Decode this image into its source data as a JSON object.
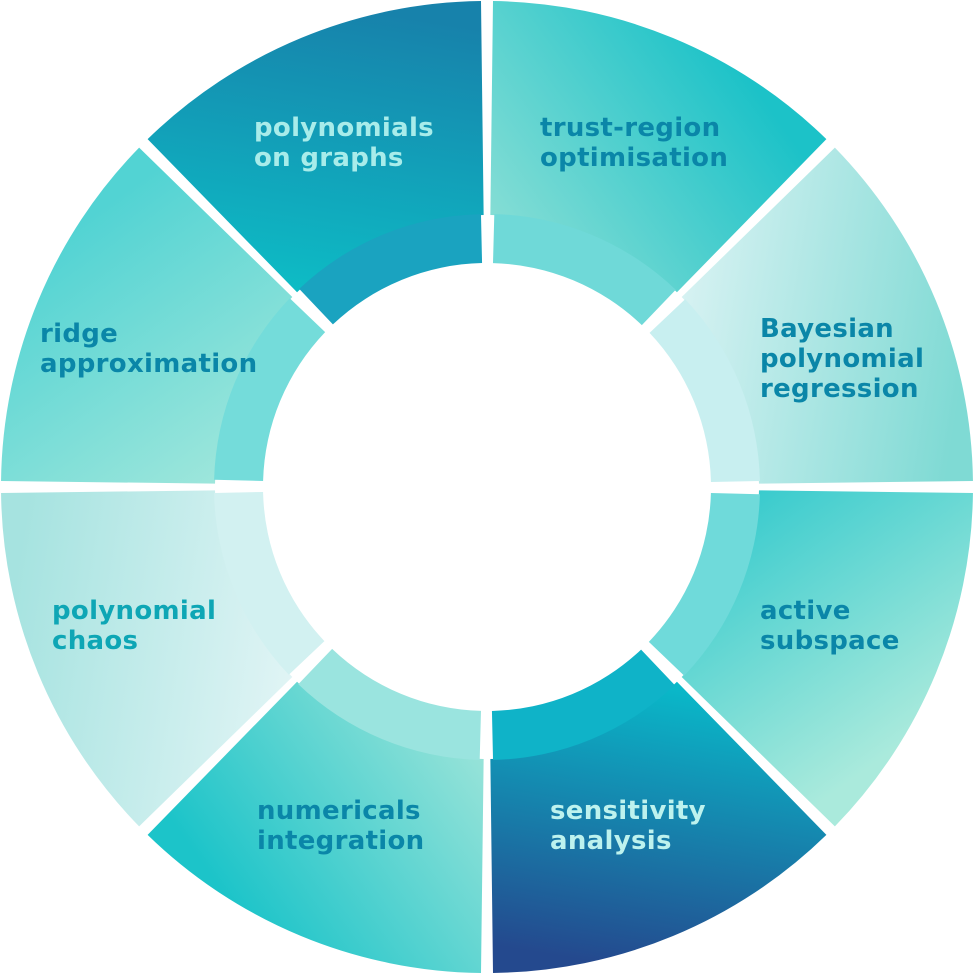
{
  "segments": [
    {
      "id": "trust-region-optimisation",
      "lines": [
        "trust-region",
        "optimisation"
      ],
      "text_color": "#0a86a8",
      "gradient": [
        "#8fe0d6",
        "#1cc2c8"
      ],
      "inner_band": "#6fd9d8"
    },
    {
      "id": "bayesian-polynomial-regression",
      "lines": [
        "Bayesian",
        "polynomial",
        "regression"
      ],
      "text_color": "#0a86a8",
      "gradient": [
        "#dff4f5",
        "#7fdad4"
      ],
      "inner_band": "#c8eff0"
    },
    {
      "id": "active-subspace",
      "lines": [
        "active",
        "subspace"
      ],
      "text_color": "#0a86a8",
      "gradient": [
        "#2ec8cc",
        "#aaeadc"
      ],
      "inner_band": "#6fdada"
    },
    {
      "id": "sensitivity-analysis",
      "lines": [
        "sensitivity",
        "analysis"
      ],
      "text_color": "#bdf2ee",
      "gradient": [
        "#06c6d0",
        "#24498e"
      ],
      "inner_band": "#0fb3c8"
    },
    {
      "id": "numericals-integration",
      "lines": [
        "numericals",
        "integration"
      ],
      "text_color": "#0a86a8",
      "gradient": [
        "#a3e6da",
        "#1cc4c9"
      ],
      "inner_band": "#9ae4df"
    },
    {
      "id": "polynomial-chaos",
      "lines": [
        "polynomial",
        "chaos"
      ],
      "text_color": "#0ea6b5",
      "gradient": [
        "#e6f6f7",
        "#a6e3e0"
      ],
      "inner_band": "#d2f1f1"
    },
    {
      "id": "ridge-approximation",
      "lines": [
        "ridge",
        "approximation"
      ],
      "text_color": "#0a86a8",
      "gradient": [
        "#a5e8dc",
        "#52d3d3"
      ],
      "inner_band": "#74dcda"
    },
    {
      "id": "polynomials-on-graphs",
      "lines": [
        "polynomials",
        "on graphs"
      ],
      "text_color": "#a8ecea",
      "gradient": [
        "#0cc2c8",
        "#1782ab"
      ],
      "inner_band": "#1aa3c0"
    }
  ]
}
